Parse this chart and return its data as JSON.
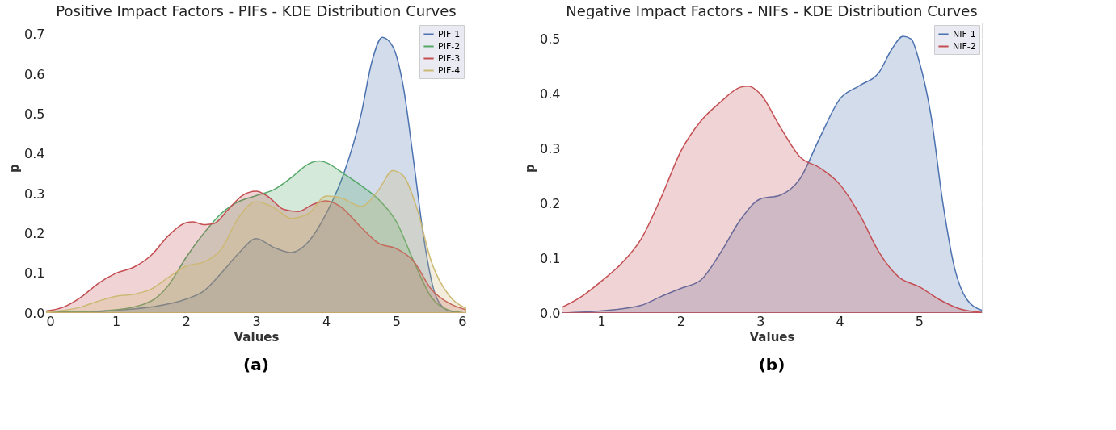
{
  "chart_data": [
    {
      "type": "area",
      "title": "Positive Impact Factors - PIFs - KDE Distribution Curves",
      "xlabel": "Values",
      "ylabel": "p",
      "annotations": [
        "(a)"
      ],
      "legend": "top right",
      "grid": true,
      "xlim": [
        0,
        6
      ],
      "xticks": [
        0,
        1,
        2,
        3,
        4,
        5,
        6
      ],
      "ylim": [
        0,
        0.73
      ],
      "yticks": [
        {
          "value": 0,
          "label": "0.0"
        },
        {
          "value": 0.1,
          "label": "0.1"
        },
        {
          "value": 0.2,
          "label": "0.2"
        },
        {
          "value": 0.3,
          "label": "0.3"
        },
        {
          "value": 0.4,
          "label": "0.4"
        },
        {
          "value": 0.5,
          "label": "0.5"
        },
        {
          "value": 0.6,
          "label": "0.6"
        },
        {
          "value": 0.7,
          "label": "0.7"
        }
      ],
      "series": [
        {
          "name": "PIF-1",
          "color": "#4c72b0",
          "x": [
            0,
            0.5,
            1,
            1.5,
            2,
            2.25,
            2.5,
            2.75,
            3,
            3.25,
            3.5,
            3.75,
            4,
            4.25,
            4.5,
            4.65,
            4.8,
            4.95,
            5.1,
            5.25,
            5.4,
            5.55,
            5.7,
            5.85
          ],
          "values": [
            0,
            0.001,
            0.007,
            0.015,
            0.035,
            0.055,
            0.1,
            0.15,
            0.187,
            0.165,
            0.152,
            0.18,
            0.25,
            0.35,
            0.5,
            0.63,
            0.693,
            0.67,
            0.57,
            0.38,
            0.18,
            0.05,
            0.01,
            0.002
          ]
        },
        {
          "name": "PIF-2",
          "color": "#55a868",
          "x": [
            0,
            0.5,
            1,
            1.5,
            1.75,
            2,
            2.25,
            2.5,
            2.75,
            3,
            3.25,
            3.5,
            3.75,
            3.9,
            4,
            4.25,
            4.5,
            4.75,
            5,
            5.25,
            5.5,
            5.75,
            5.95
          ],
          "values": [
            0.003,
            0.003,
            0.008,
            0.03,
            0.07,
            0.14,
            0.2,
            0.25,
            0.28,
            0.295,
            0.31,
            0.34,
            0.375,
            0.382,
            0.378,
            0.35,
            0.32,
            0.285,
            0.23,
            0.13,
            0.04,
            0.007,
            0.001
          ]
        },
        {
          "name": "PIF-3",
          "color": "#c44e52",
          "x": [
            0,
            0.25,
            0.5,
            0.75,
            1,
            1.25,
            1.5,
            1.75,
            2,
            2.1,
            2.25,
            2.4,
            2.6,
            2.8,
            3,
            3.15,
            3.4,
            3.6,
            3.8,
            4,
            4.2,
            4.5,
            4.75,
            5,
            5.25,
            5.5,
            5.75,
            6
          ],
          "values": [
            0.005,
            0.015,
            0.04,
            0.075,
            0.1,
            0.115,
            0.145,
            0.195,
            0.227,
            0.229,
            0.222,
            0.225,
            0.26,
            0.295,
            0.306,
            0.295,
            0.26,
            0.255,
            0.272,
            0.282,
            0.268,
            0.215,
            0.175,
            0.162,
            0.13,
            0.06,
            0.025,
            0.008
          ]
        },
        {
          "name": "PIF-4",
          "color": "#ccb974",
          "x": [
            0,
            0.5,
            0.75,
            1,
            1.25,
            1.5,
            1.75,
            2,
            2.25,
            2.5,
            2.75,
            3,
            3.25,
            3.5,
            3.75,
            4,
            4.2,
            4.5,
            4.75,
            4.95,
            5.1,
            5.3,
            5.5,
            5.75,
            6
          ],
          "values": [
            0.002,
            0.015,
            0.03,
            0.042,
            0.047,
            0.06,
            0.09,
            0.118,
            0.128,
            0.16,
            0.24,
            0.28,
            0.265,
            0.238,
            0.25,
            0.294,
            0.29,
            0.268,
            0.31,
            0.358,
            0.345,
            0.26,
            0.13,
            0.045,
            0.012
          ]
        }
      ]
    },
    {
      "type": "area",
      "title": "Negative Impact Factors - NIFs - KDE Distribution Curves",
      "xlabel": "Values",
      "ylabel": "p",
      "annotations": [
        "(b)"
      ],
      "legend": "top right",
      "grid": true,
      "xlim": [
        0.5,
        5.79
      ],
      "xticks": [
        1,
        2,
        3,
        4,
        5
      ],
      "ylim": [
        0,
        0.53
      ],
      "yticks": [
        {
          "value": 0,
          "label": "0.0"
        },
        {
          "value": 0.1,
          "label": "0.1"
        },
        {
          "value": 0.2,
          "label": "0.2"
        },
        {
          "value": 0.3,
          "label": "0.3"
        },
        {
          "value": 0.4,
          "label": "0.4"
        },
        {
          "value": 0.5,
          "label": "0.5"
        }
      ],
      "series": [
        {
          "name": "NIF-1",
          "color": "#4c72b0",
          "x": [
            0.5,
            1,
            1.5,
            1.75,
            2,
            2.25,
            2.5,
            2.75,
            3,
            3.25,
            3.5,
            3.75,
            4,
            4.25,
            4.5,
            4.65,
            4.8,
            4.9,
            5,
            5.15,
            5.3,
            5.45,
            5.6,
            5.79
          ],
          "values": [
            0,
            0.004,
            0.014,
            0.03,
            0.045,
            0.06,
            0.11,
            0.17,
            0.208,
            0.215,
            0.245,
            0.32,
            0.39,
            0.415,
            0.44,
            0.48,
            0.505,
            0.5,
            0.46,
            0.36,
            0.2,
            0.08,
            0.025,
            0.005
          ]
        },
        {
          "name": "NIF-2",
          "color": "#c44e52",
          "x": [
            0.5,
            0.75,
            1,
            1.25,
            1.5,
            1.75,
            2,
            2.25,
            2.5,
            2.75,
            2.85,
            3,
            3.25,
            3.5,
            3.75,
            4,
            4.25,
            4.5,
            4.75,
            5,
            5.25,
            5.5,
            5.79
          ],
          "values": [
            0.01,
            0.03,
            0.058,
            0.09,
            0.135,
            0.21,
            0.295,
            0.35,
            0.385,
            0.412,
            0.414,
            0.4,
            0.34,
            0.285,
            0.265,
            0.235,
            0.18,
            0.11,
            0.065,
            0.048,
            0.025,
            0.008,
            0.001
          ]
        }
      ]
    }
  ]
}
